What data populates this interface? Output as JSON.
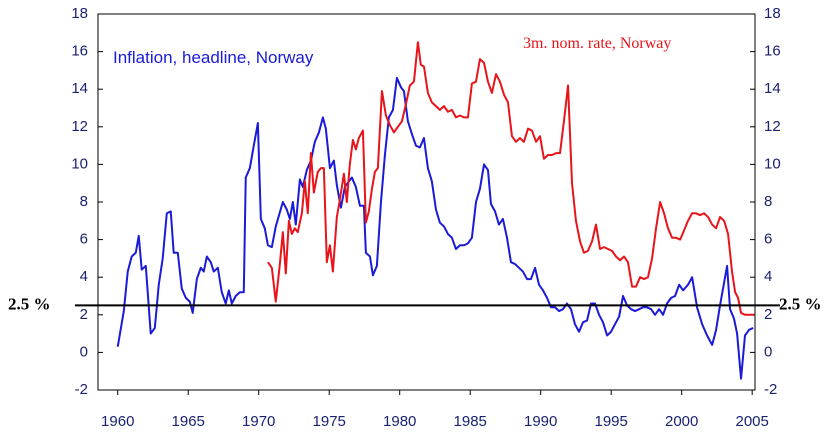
{
  "chart_data": {
    "type": "line",
    "xlim": [
      1958.6,
      2005.2
    ],
    "xticks": [
      1960,
      1965,
      1970,
      1975,
      1980,
      1985,
      1990,
      1995,
      2000,
      2005
    ],
    "ylim": [
      -2,
      18
    ],
    "yticks": [
      -2,
      0,
      2,
      4,
      6,
      8,
      10,
      12,
      14,
      16,
      18
    ],
    "y2lim": [
      -2,
      18
    ],
    "y2ticks": [
      -2,
      0,
      2,
      4,
      6,
      8,
      10,
      12,
      14,
      16,
      18
    ],
    "reference_line": {
      "value": 2.5,
      "label": "2.5 %",
      "color": "#000000"
    },
    "series": [
      {
        "name": "Inflation, headline, Norway",
        "color": "#1a1ad8",
        "x": [
          1960.0,
          1960.43,
          1960.71,
          1960.99,
          1961.28,
          1961.49,
          1961.7,
          1961.99,
          1962.34,
          1962.63,
          1962.91,
          1963.19,
          1963.48,
          1963.76,
          1963.97,
          1964.26,
          1964.54,
          1964.83,
          1965.11,
          1965.32,
          1965.61,
          1965.89,
          1966.1,
          1966.32,
          1966.6,
          1966.81,
          1967.1,
          1967.38,
          1967.66,
          1967.88,
          1968.09,
          1968.37,
          1968.66,
          1968.94,
          1969.08,
          1969.37,
          1969.65,
          1969.94,
          1970.15,
          1970.43,
          1970.65,
          1970.93,
          1971.21,
          1971.71,
          1971.99,
          1972.21,
          1972.42,
          1972.63,
          1972.92,
          1973.13,
          1973.41,
          1973.7,
          1973.98,
          1974.27,
          1974.55,
          1974.76,
          1975.05,
          1975.33,
          1975.54,
          1975.83,
          1976.11,
          1976.39,
          1976.61,
          1976.89,
          1977.18,
          1977.46,
          1977.6,
          1977.89,
          1978.1,
          1978.38,
          1978.67,
          1978.95,
          1979.23,
          1979.52,
          1979.8,
          1980.09,
          1980.3,
          1980.58,
          1980.87,
          1981.15,
          1981.43,
          1981.72,
          1982.0,
          1982.28,
          1982.57,
          1982.85,
          1983.14,
          1983.42,
          1983.7,
          1983.99,
          1984.27,
          1984.56,
          1984.84,
          1985.12,
          1985.41,
          1985.69,
          1985.98,
          1986.26,
          1986.47,
          1986.76,
          1987.04,
          1987.32,
          1987.61,
          1987.89,
          1988.18,
          1988.46,
          1988.74,
          1989.03,
          1989.31,
          1989.6,
          1989.88,
          1990.16,
          1990.45,
          1990.73,
          1991.01,
          1991.3,
          1991.58,
          1991.87,
          1992.15,
          1992.43,
          1992.72,
          1993.0,
          1993.29,
          1993.57,
          1993.85,
          1994.14,
          1994.42,
          1994.71,
          1994.99,
          1995.27,
          1995.56,
          1995.84,
          1996.12,
          1996.41,
          1996.69,
          1996.98,
          1997.26,
          1997.54,
          1997.83,
          1998.11,
          1998.4,
          1998.68,
          1998.96,
          1999.25,
          1999.53,
          1999.82,
          2000.1,
          2000.45,
          2000.74,
          2001.09,
          2001.45,
          2001.8,
          2002.16,
          2002.44,
          2002.72,
          2003.22,
          2003.43,
          2003.71,
          2003.93,
          2004.21,
          2004.49,
          2004.78,
          2005.07
        ],
        "values": [
          0.3,
          2.2,
          4.3,
          5.1,
          5.3,
          6.2,
          4.4,
          4.6,
          1.0,
          1.3,
          3.6,
          5.0,
          7.4,
          7.5,
          5.3,
          5.3,
          3.4,
          2.9,
          2.7,
          2.1,
          3.9,
          4.5,
          4.3,
          5.1,
          4.8,
          4.3,
          4.5,
          3.2,
          2.6,
          3.3,
          2.6,
          3.0,
          3.2,
          3.2,
          9.3,
          9.8,
          11.0,
          12.2,
          7.1,
          6.6,
          5.7,
          5.6,
          6.7,
          8.0,
          7.6,
          7.1,
          8.0,
          6.8,
          9.2,
          8.8,
          9.7,
          10.2,
          11.2,
          11.7,
          12.5,
          11.9,
          9.8,
          10.2,
          8.9,
          7.7,
          8.8,
          9.1,
          9.3,
          8.8,
          7.8,
          7.8,
          5.3,
          5.1,
          4.1,
          4.6,
          8.0,
          10.5,
          12.5,
          12.9,
          14.6,
          14.1,
          13.9,
          12.3,
          11.6,
          11.0,
          10.9,
          11.4,
          9.8,
          9.1,
          7.6,
          6.9,
          6.7,
          6.3,
          6.1,
          5.5,
          5.7,
          5.7,
          5.8,
          6.1,
          8.0,
          8.7,
          10.0,
          9.7,
          7.9,
          7.5,
          6.8,
          7.1,
          6.1,
          4.8,
          4.7,
          4.5,
          4.3,
          3.9,
          3.9,
          4.5,
          3.6,
          3.3,
          2.9,
          2.4,
          2.4,
          2.2,
          2.3,
          2.6,
          2.3,
          1.5,
          1.1,
          1.6,
          1.7,
          2.6,
          2.6,
          2.0,
          1.6,
          0.9,
          1.1,
          1.5,
          1.9,
          3.0,
          2.5,
          2.3,
          2.2,
          2.3,
          2.4,
          2.4,
          2.3,
          2.0,
          2.3,
          2.0,
          2.6,
          2.9,
          3.0,
          3.6,
          3.3,
          3.6,
          4.0,
          2.4,
          1.5,
          0.9,
          0.4,
          1.2,
          2.5,
          4.6,
          2.3,
          1.8,
          1.0,
          -1.4,
          0.9,
          1.2,
          1.3
        ]
      },
      {
        "name": "3m. nom. rate, Norway",
        "color": "#e8141a",
        "x": [
          1970.65,
          1970.93,
          1971.21,
          1971.5,
          1971.71,
          1971.92,
          1972.14,
          1972.35,
          1972.56,
          1972.77,
          1973.06,
          1973.27,
          1973.48,
          1973.7,
          1973.91,
          1974.19,
          1974.41,
          1974.62,
          1974.83,
          1975.05,
          1975.26,
          1975.54,
          1975.75,
          1976.04,
          1976.25,
          1976.46,
          1976.68,
          1976.89,
          1977.1,
          1977.39,
          1977.6,
          1977.81,
          1978.03,
          1978.24,
          1978.45,
          1978.74,
          1979.02,
          1979.3,
          1979.59,
          1979.87,
          1980.16,
          1980.44,
          1980.72,
          1981.01,
          1981.29,
          1981.5,
          1981.72,
          1982.0,
          1982.28,
          1982.57,
          1982.85,
          1983.14,
          1983.42,
          1983.7,
          1983.99,
          1984.27,
          1984.56,
          1984.84,
          1985.12,
          1985.41,
          1985.69,
          1985.98,
          1986.26,
          1986.54,
          1986.83,
          1987.11,
          1987.4,
          1987.68,
          1987.96,
          1988.25,
          1988.53,
          1988.81,
          1989.1,
          1989.38,
          1989.67,
          1989.95,
          1990.23,
          1990.52,
          1990.8,
          1991.09,
          1991.37,
          1991.65,
          1991.94,
          1992.22,
          1992.5,
          1992.79,
          1993.07,
          1993.35,
          1993.64,
          1993.92,
          1994.21,
          1994.49,
          1994.77,
          1995.06,
          1995.34,
          1995.63,
          1995.91,
          1996.19,
          1996.48,
          1996.76,
          1997.05,
          1997.33,
          1997.61,
          1997.9,
          1998.18,
          1998.47,
          1998.75,
          1999.03,
          1999.32,
          1999.6,
          1999.89,
          2000.17,
          2000.45,
          2000.74,
          2001.02,
          2001.31,
          2001.59,
          2001.87,
          2002.16,
          2002.44,
          2002.72,
          2003.01,
          2003.29,
          2003.57,
          2003.79,
          2004.0,
          2004.21,
          2004.49,
          2004.85,
          2005.14
        ],
        "values": [
          4.8,
          4.5,
          2.7,
          4.7,
          6.4,
          4.2,
          7.0,
          6.3,
          6.6,
          6.4,
          7.4,
          9.1,
          7.4,
          10.6,
          8.5,
          9.6,
          9.8,
          9.8,
          4.8,
          5.7,
          4.3,
          7.2,
          8.1,
          9.5,
          8.0,
          10.0,
          11.3,
          10.8,
          11.4,
          11.8,
          6.9,
          7.5,
          8.7,
          9.6,
          9.8,
          13.9,
          12.6,
          12.1,
          11.7,
          12.0,
          12.3,
          13.2,
          14.2,
          14.4,
          16.5,
          15.3,
          15.2,
          13.8,
          13.3,
          13.1,
          12.9,
          13.1,
          12.8,
          12.9,
          12.5,
          12.6,
          12.5,
          12.5,
          14.3,
          14.4,
          15.6,
          15.4,
          14.4,
          13.8,
          14.8,
          14.4,
          13.7,
          13.3,
          11.5,
          11.2,
          11.4,
          11.2,
          11.9,
          11.8,
          11.2,
          11.5,
          10.3,
          10.5,
          10.5,
          10.6,
          10.6,
          12.3,
          14.2,
          9.0,
          7.0,
          5.9,
          5.3,
          5.4,
          5.9,
          6.8,
          5.5,
          5.6,
          5.5,
          5.4,
          5.1,
          4.9,
          5.1,
          4.8,
          3.5,
          3.5,
          4.0,
          3.9,
          4.0,
          5.0,
          6.6,
          8.0,
          7.4,
          6.6,
          6.1,
          6.1,
          6.0,
          6.5,
          7.0,
          7.4,
          7.4,
          7.3,
          7.4,
          7.2,
          6.8,
          6.6,
          7.2,
          7.0,
          6.3,
          4.3,
          3.2,
          2.9,
          2.1,
          2.0,
          2.0,
          2.0
        ]
      }
    ]
  }
}
